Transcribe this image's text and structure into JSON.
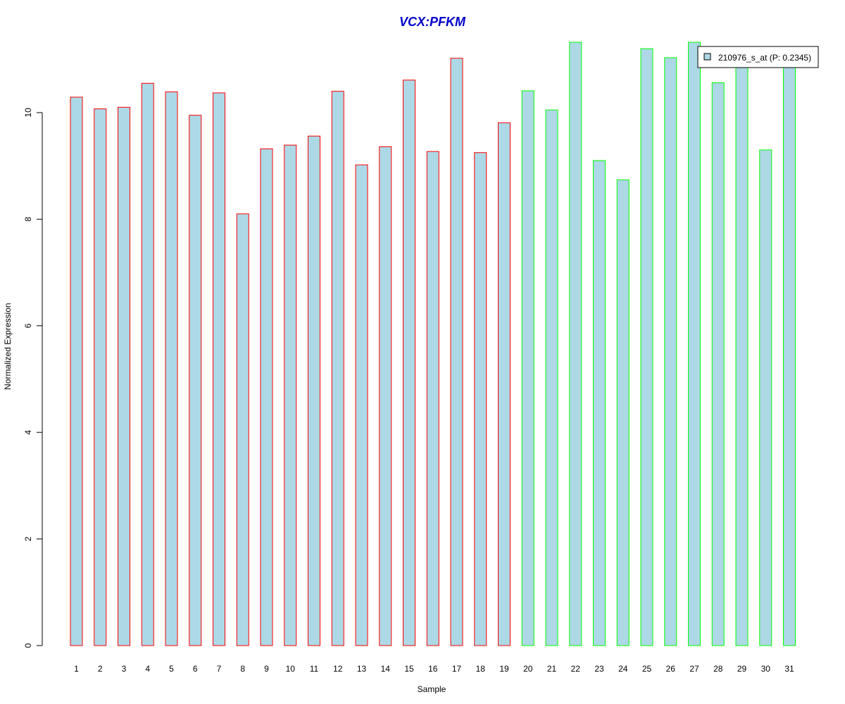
{
  "chart_data": {
    "type": "bar",
    "title": "VCX:PFKM",
    "xlabel": "Sample",
    "ylabel": "Normalized Expression",
    "categories": [
      "1",
      "2",
      "3",
      "4",
      "5",
      "6",
      "7",
      "8",
      "9",
      "10",
      "11",
      "12",
      "13",
      "14",
      "15",
      "16",
      "17",
      "18",
      "19",
      "20",
      "21",
      "22",
      "23",
      "24",
      "25",
      "26",
      "27",
      "28",
      "29",
      "30",
      "31"
    ],
    "values": [
      10.29,
      10.07,
      10.1,
      10.55,
      10.39,
      9.95,
      10.37,
      8.1,
      9.32,
      9.39,
      9.56,
      10.4,
      9.02,
      9.36,
      10.61,
      9.27,
      11.02,
      9.25,
      9.81,
      10.41,
      10.05,
      11.32,
      9.1,
      8.74,
      11.2,
      11.03,
      11.32,
      10.56,
      11.05,
      9.3,
      11.05
    ],
    "groups": [
      0,
      0,
      0,
      0,
      0,
      0,
      0,
      0,
      0,
      0,
      0,
      0,
      0,
      0,
      0,
      0,
      0,
      0,
      0,
      1,
      1,
      1,
      1,
      1,
      1,
      1,
      1,
      1,
      1,
      1,
      1
    ],
    "group_border_colors": [
      "#ff0000",
      "#00ff00"
    ],
    "bar_fill": "#add8e6",
    "title_color": "#0000cd",
    "ylim": [
      0,
      11.32
    ],
    "yticks": [
      0,
      2,
      4,
      6,
      8,
      10
    ],
    "grid": false,
    "legend": {
      "placement": "top-right",
      "entries": [
        {
          "label": "210976_s_at (P: 0.2345)",
          "color": "#add8e6"
        }
      ]
    }
  }
}
